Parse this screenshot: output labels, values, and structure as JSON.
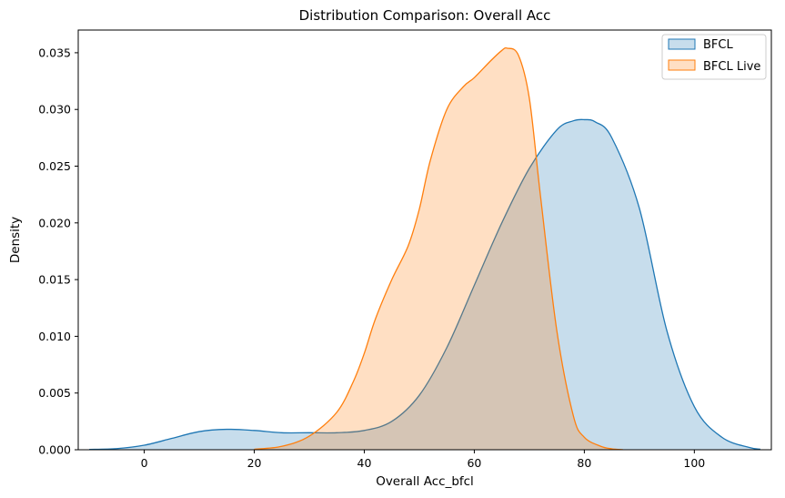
{
  "chart_data": {
    "type": "area",
    "title": "Distribution Comparison: Overall Acc",
    "xlabel": "Overall Acc_bfcl",
    "ylabel": "Density",
    "xlim": [
      -12,
      114
    ],
    "ylim": [
      0,
      0.037
    ],
    "x_ticks": [
      0,
      20,
      40,
      60,
      80,
      100
    ],
    "y_ticks": [
      0.0,
      0.005,
      0.01,
      0.015,
      0.02,
      0.025,
      0.03,
      0.035
    ],
    "x_tick_labels": [
      "0",
      "20",
      "40",
      "60",
      "80",
      "100"
    ],
    "y_tick_labels": [
      "0.000",
      "0.005",
      "0.010",
      "0.015",
      "0.020",
      "0.025",
      "0.030",
      "0.035"
    ],
    "grid": false,
    "legend_position": "top-right",
    "series": [
      {
        "name": "BFCL",
        "color": "#1f77b4",
        "fill_opacity": 0.25,
        "x": [
          -10,
          -5,
          0,
          5,
          10,
          15,
          20,
          25,
          30,
          35,
          40,
          45,
          50,
          55,
          60,
          65,
          70,
          75,
          78,
          80,
          82,
          85,
          90,
          95,
          100,
          105,
          110,
          112
        ],
        "y": [
          3e-05,
          0.0001,
          0.0004,
          0.001,
          0.0016,
          0.0018,
          0.0017,
          0.0015,
          0.0015,
          0.0015,
          0.0017,
          0.0025,
          0.0048,
          0.009,
          0.0145,
          0.02,
          0.0248,
          0.0282,
          0.029,
          0.0291,
          0.0289,
          0.0275,
          0.0213,
          0.0105,
          0.0038,
          0.0011,
          0.0002,
          5e-05
        ]
      },
      {
        "name": "BFCL Live",
        "color": "#ff7f0e",
        "fill_opacity": 0.25,
        "x": [
          20,
          25,
          30,
          35,
          38,
          40,
          42,
          45,
          48,
          50,
          52,
          55,
          58,
          60,
          63,
          65,
          66,
          68,
          70,
          72,
          75,
          78,
          80,
          83,
          85,
          87
        ],
        "y": [
          5e-05,
          0.0003,
          0.0012,
          0.0033,
          0.006,
          0.0085,
          0.0115,
          0.015,
          0.018,
          0.0212,
          0.0255,
          0.03,
          0.032,
          0.0328,
          0.0343,
          0.0352,
          0.0354,
          0.0348,
          0.031,
          0.0225,
          0.0105,
          0.003,
          0.0011,
          0.0003,
          8e-05,
          1e-05
        ]
      }
    ]
  }
}
